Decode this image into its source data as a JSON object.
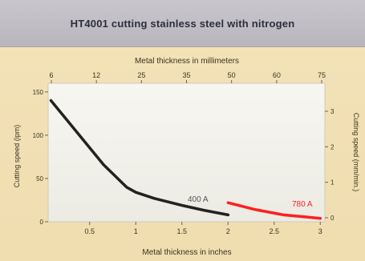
{
  "title": "HT4001 cutting stainless steel with nitrogen",
  "chart_data": {
    "type": "line",
    "title": "HT4001 cutting stainless steel with nitrogen",
    "xlabel": "Metal thickness in inches",
    "x_ticks": [
      0.5,
      1,
      1.5,
      2,
      2.5,
      3
    ],
    "xlim": [
      0.05,
      3.05
    ],
    "x2label": "Metal thickness in millimeters",
    "x2_ticks": [
      6,
      12,
      25,
      35,
      50,
      60,
      75
    ],
    "ylabel": "Cutting speed (ipm)",
    "y_ticks": [
      0,
      50,
      100,
      150
    ],
    "ylim": [
      0,
      160
    ],
    "y2label": "Cutting speed (mm/min.)",
    "y2_ticks": [
      0,
      1,
      2,
      3
    ],
    "grid": false,
    "series": [
      {
        "name": "400 A",
        "color": "#222222",
        "x": [
          0.08,
          0.25,
          0.45,
          0.65,
          0.9,
          1.0,
          1.2,
          1.5,
          1.75,
          2.0
        ],
        "y": [
          140,
          118,
          92,
          66,
          40,
          34,
          27,
          19,
          13,
          8
        ]
      },
      {
        "name": "780 A",
        "color": "#ff1f1f",
        "x": [
          2.0,
          2.3,
          2.6,
          2.9,
          3.0
        ],
        "y": [
          22,
          14,
          8,
          5,
          4
        ]
      }
    ]
  }
}
